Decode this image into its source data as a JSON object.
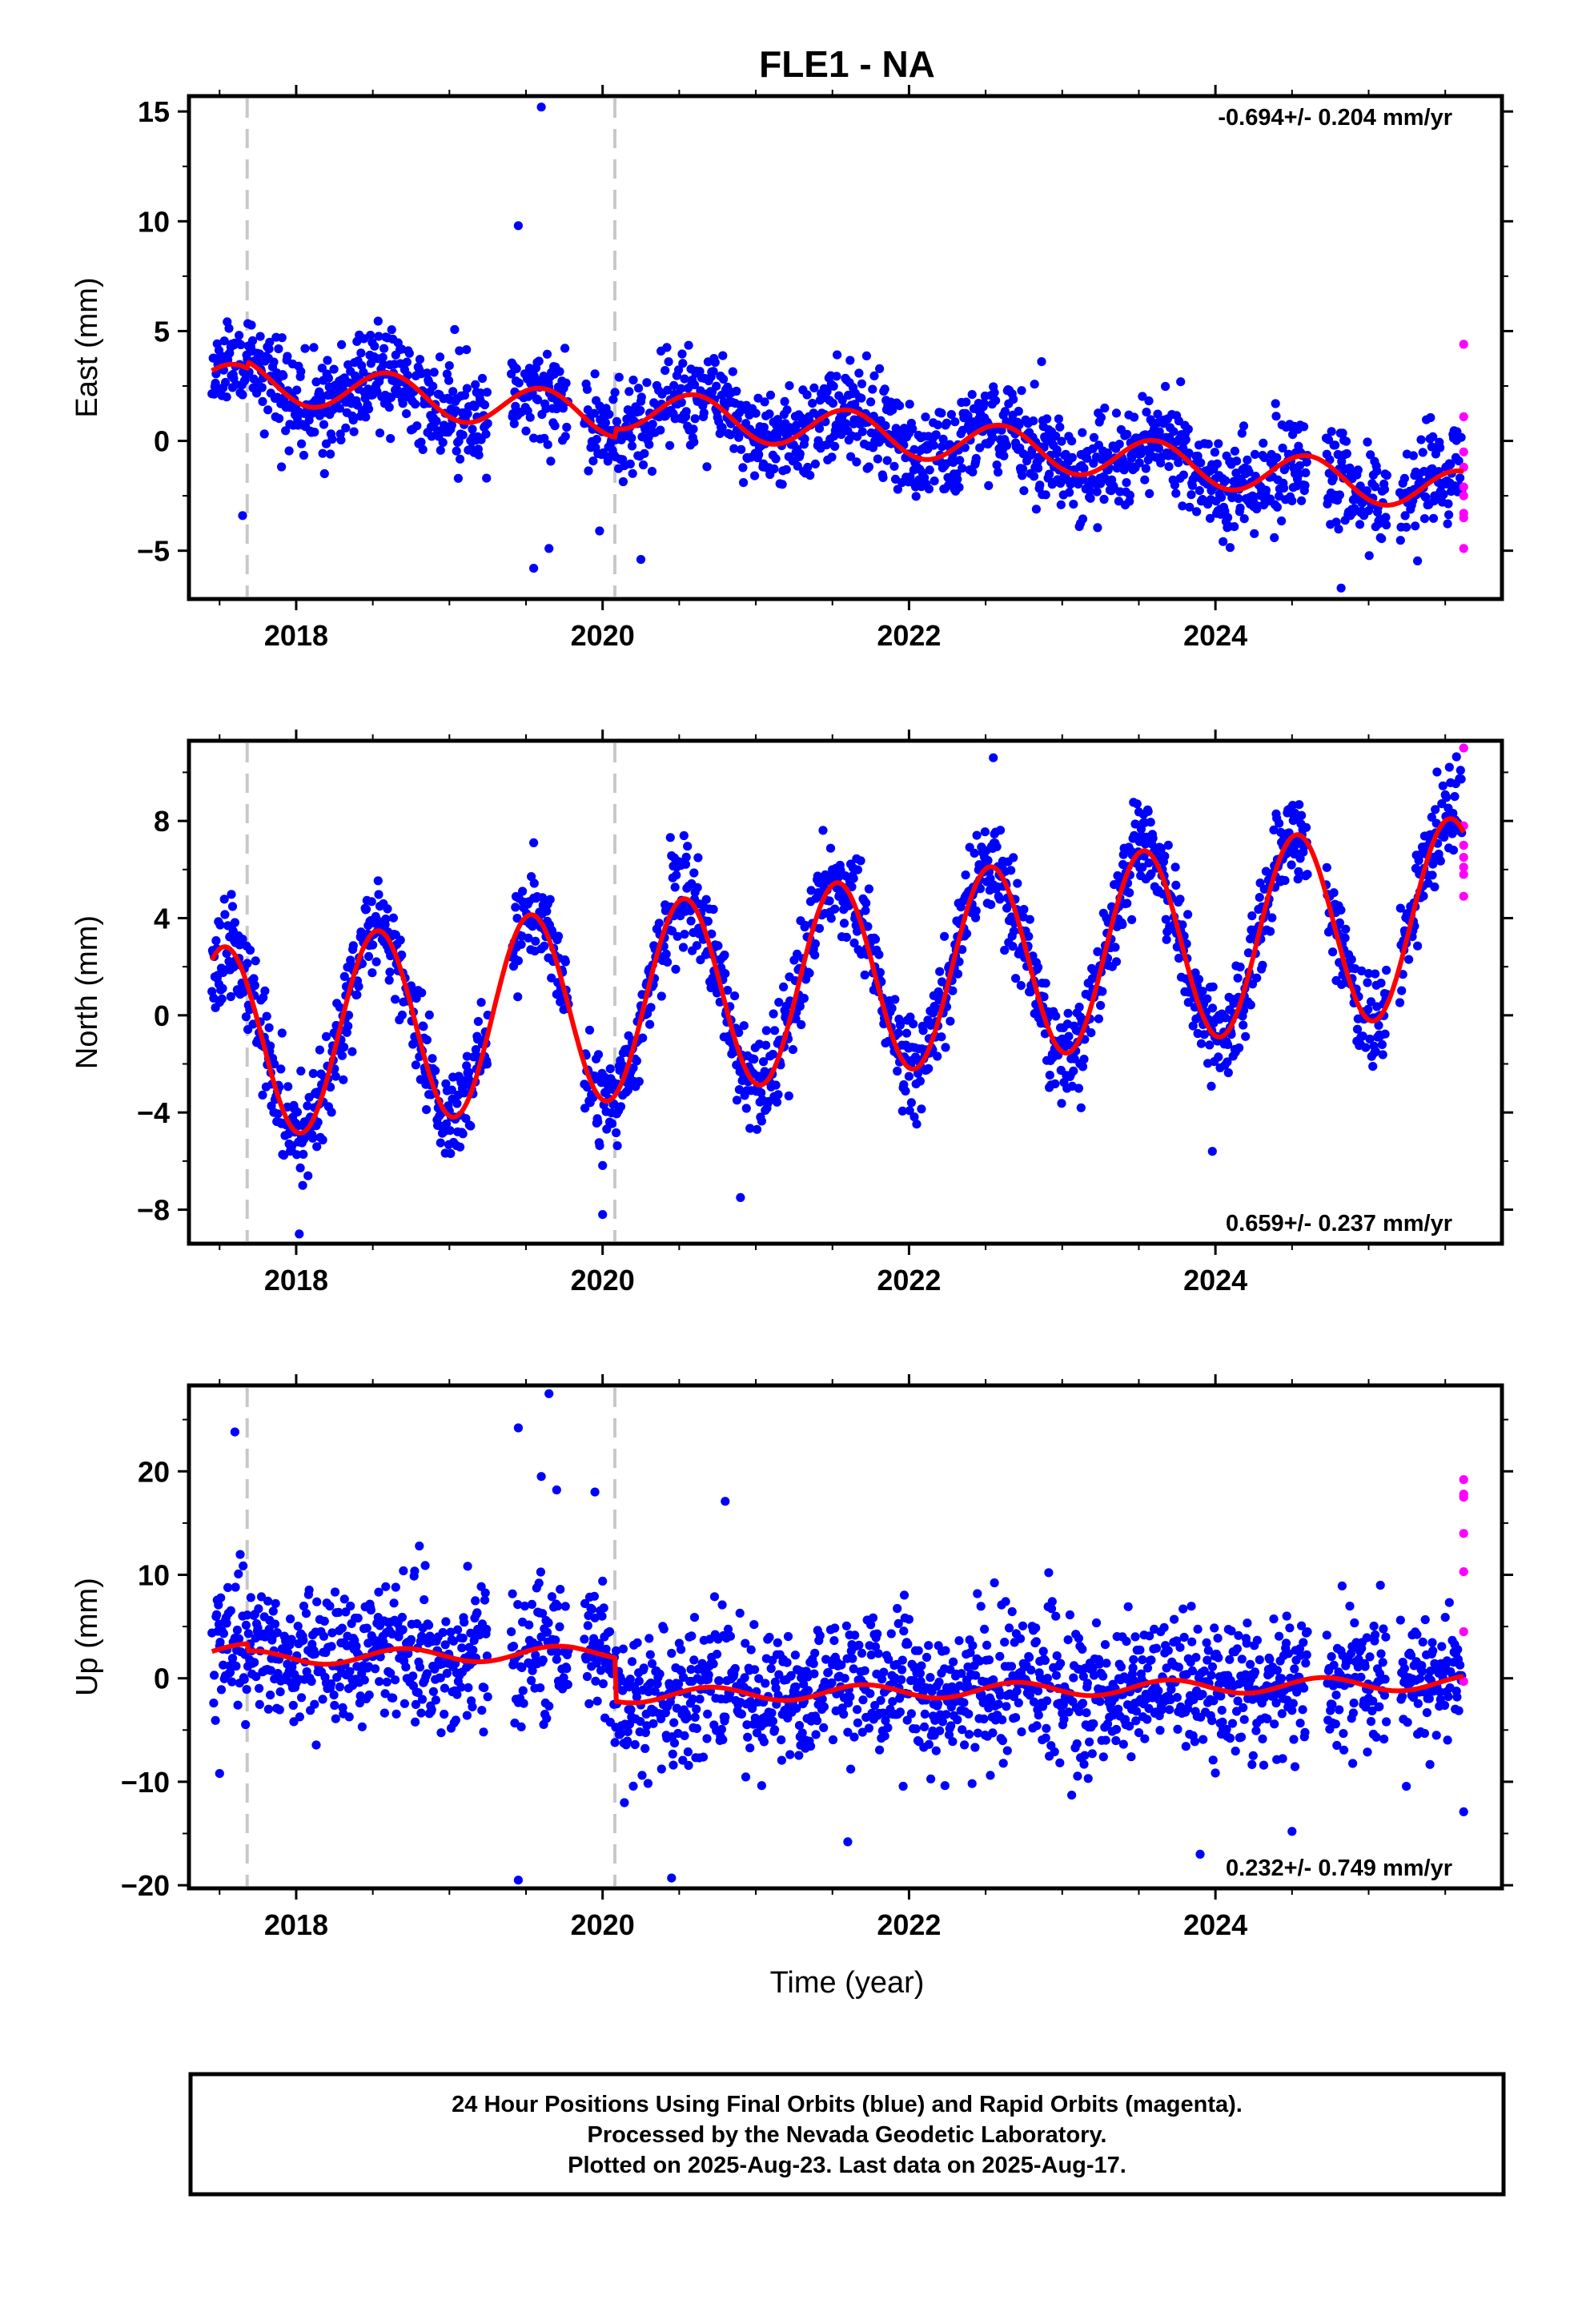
{
  "figure": {
    "title": "FLE1 - NA",
    "xlabel": "Time (year)",
    "footer_lines": [
      "24 Hour Positions Using Final Orbits (blue) and Rapid Orbits (magenta).",
      "Processed by the Nevada Geodetic Laboratory.",
      "Plotted on 2025-Aug-23. Last data on 2025-Aug-17."
    ],
    "colors": {
      "final": "#0000ff",
      "rapid": "#ff00ff",
      "model": "#ff0000",
      "event_line": "#c8c8c8"
    }
  },
  "chart_data": [
    {
      "type": "scatter",
      "ylabel": "East (mm)",
      "rate_label": "-0.694+/- 0.204 mm/yr",
      "rate_position": "top-right",
      "xlim": [
        2017.3,
        2025.87
      ],
      "ylim": [
        -7.2,
        15.7
      ],
      "xticks": [
        2018,
        2020,
        2022,
        2024
      ],
      "xtick_labels": [
        "2018",
        "2020",
        "2022",
        "2024"
      ],
      "yticks": [
        -5,
        0,
        5,
        10,
        15
      ],
      "ytick_labels": [
        "−5",
        "0",
        "5",
        "10",
        "15"
      ],
      "event_lines": [
        2017.68,
        2020.08
      ],
      "model": {
        "trend_start": 2.6,
        "rate": -0.694,
        "annual_amp": 0.95,
        "annual_peak": 0.6,
        "offsets": [
          {
            "t": 2017.68,
            "dy": 0.3
          },
          {
            "t": 2020.08,
            "dy": 0.4
          }
        ]
      },
      "scatter": {
        "sigma": 1.1,
        "seed": 11
      },
      "outliers": [
        [
          2019.6,
          15.2
        ],
        [
          2019.45,
          9.8
        ],
        [
          2019.55,
          -5.8
        ],
        [
          2019.65,
          -4.9
        ],
        [
          2019.98,
          -4.1
        ],
        [
          2020.25,
          -5.4
        ],
        [
          2017.65,
          -3.4
        ],
        [
          2024.82,
          -6.7
        ]
      ],
      "rapid": {
        "t": 2025.62,
        "values": [
          4.4,
          1.1,
          -0.5,
          -1.2,
          -2.1,
          -2.5,
          -3.3,
          -3.5,
          -4.9
        ]
      }
    },
    {
      "type": "scatter",
      "ylabel": "North (mm)",
      "rate_label": "0.659+/- 0.237 mm/yr",
      "rate_position": "bottom-right",
      "xlim": [
        2017.3,
        2025.87
      ],
      "ylim": [
        -9.4,
        11.3
      ],
      "xticks": [
        2018,
        2020,
        2022,
        2024
      ],
      "xtick_labels": [
        "2018",
        "2020",
        "2022",
        "2024"
      ],
      "yticks": [
        -8,
        -4,
        0,
        4,
        8
      ],
      "ytick_labels": [
        "−8",
        "−4",
        "0",
        "4",
        "8"
      ],
      "event_lines": [
        2017.68,
        2020.08
      ],
      "model": {
        "trend_start": -1.2,
        "rate": 0.659,
        "annual_amp": 4.0,
        "annual_peak": 0.53,
        "offsets": []
      },
      "scatter": {
        "sigma": 1.0,
        "seed": 23
      },
      "outliers": [
        [
          2022.55,
          10.6
        ],
        [
          2019.55,
          7.1
        ],
        [
          2018.02,
          -9.0
        ],
        [
          2020.0,
          -8.2
        ],
        [
          2020.9,
          -7.5
        ],
        [
          2023.98,
          -5.6
        ]
      ],
      "rapid": {
        "t": 2025.62,
        "values": [
          11.0,
          7.8,
          7.0,
          6.5,
          6.1,
          5.8,
          4.9
        ]
      }
    },
    {
      "type": "scatter",
      "ylabel": "Up (mm)",
      "rate_label": "0.232+/- 0.749 mm/yr",
      "rate_position": "bottom-right",
      "xlim": [
        2017.3,
        2025.87
      ],
      "ylim": [
        -20.3,
        28.3
      ],
      "xticks": [
        2018,
        2020,
        2022,
        2024
      ],
      "xtick_labels": [
        "2018",
        "2020",
        "2022",
        "2024"
      ],
      "yticks": [
        -20,
        -10,
        0,
        10,
        20
      ],
      "ytick_labels": [
        "−20",
        "−10",
        "0",
        "10",
        "20"
      ],
      "event_lines": [
        2017.68,
        2020.08
      ],
      "model": {
        "trend_start": 2.6,
        "rate": 0.232,
        "annual_amp": 0.7,
        "annual_peak": 0.7,
        "offsets": [
          {
            "t": 2017.68,
            "dy": -0.7
          },
          {
            "t": 2020.08,
            "dy": -4.2
          }
        ]
      },
      "scatter": {
        "sigma": 3.3,
        "seed": 37
      },
      "outliers": [
        [
          2019.65,
          27.5
        ],
        [
          2019.45,
          24.2
        ],
        [
          2017.6,
          23.8
        ],
        [
          2019.6,
          19.5
        ],
        [
          2019.7,
          18.2
        ],
        [
          2019.95,
          18.0
        ],
        [
          2017.5,
          -9.2
        ],
        [
          2019.45,
          -19.5
        ],
        [
          2020.45,
          -19.3
        ],
        [
          2021.6,
          -15.8
        ],
        [
          2024.5,
          -14.8
        ],
        [
          2025.62,
          -12.9
        ],
        [
          2020.8,
          17.1
        ],
        [
          2023.9,
          -17.0
        ]
      ],
      "rapid": {
        "t": 2025.62,
        "values": [
          19.2,
          17.8,
          17.5,
          14.0,
          10.3,
          4.5,
          -0.3
        ]
      }
    }
  ]
}
